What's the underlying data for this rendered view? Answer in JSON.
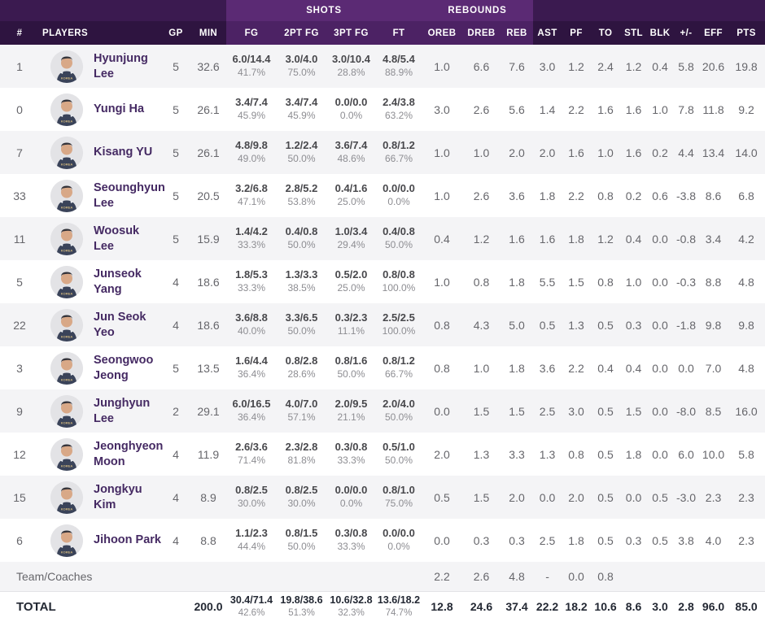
{
  "colors": {
    "header_dark": "#2e1440",
    "header_group_dark": "#3b1a50",
    "header_band": "#4c2264",
    "header_group_band": "#5b2a74",
    "player_name": "#452a63",
    "row_stripe": "#f4f4f6"
  },
  "table": {
    "group_headers": {
      "shots": "SHOTS",
      "rebounds": "REBOUNDS"
    },
    "columns": [
      "#",
      "PLAYERS",
      "GP",
      "MIN",
      "FG",
      "2PT FG",
      "3PT FG",
      "FT",
      "OREB",
      "DREB",
      "REB",
      "AST",
      "PF",
      "TO",
      "STL",
      "BLK",
      "+/-",
      "EFF",
      "PTS"
    ],
    "players": [
      {
        "number": "1",
        "name": "Hyunjung Lee",
        "gp": "5",
        "min": "32.6",
        "fg": "6.0/14.4",
        "fg_pct": "41.7%",
        "p2": "3.0/4.0",
        "p2_pct": "75.0%",
        "p3": "3.0/10.4",
        "p3_pct": "28.8%",
        "ft": "4.8/5.4",
        "ft_pct": "88.9%",
        "oreb": "1.0",
        "dreb": "6.6",
        "reb": "7.6",
        "ast": "3.0",
        "pf": "1.2",
        "to": "2.4",
        "stl": "1.2",
        "blk": "0.4",
        "pm": "5.8",
        "eff": "20.6",
        "pts": "19.8"
      },
      {
        "number": "0",
        "name": "Yungi Ha",
        "gp": "5",
        "min": "26.1",
        "fg": "3.4/7.4",
        "fg_pct": "45.9%",
        "p2": "3.4/7.4",
        "p2_pct": "45.9%",
        "p3": "0.0/0.0",
        "p3_pct": "0.0%",
        "ft": "2.4/3.8",
        "ft_pct": "63.2%",
        "oreb": "3.0",
        "dreb": "2.6",
        "reb": "5.6",
        "ast": "1.4",
        "pf": "2.2",
        "to": "1.6",
        "stl": "1.6",
        "blk": "1.0",
        "pm": "7.8",
        "eff": "11.8",
        "pts": "9.2"
      },
      {
        "number": "7",
        "name": "Kisang YU",
        "gp": "5",
        "min": "26.1",
        "fg": "4.8/9.8",
        "fg_pct": "49.0%",
        "p2": "1.2/2.4",
        "p2_pct": "50.0%",
        "p3": "3.6/7.4",
        "p3_pct": "48.6%",
        "ft": "0.8/1.2",
        "ft_pct": "66.7%",
        "oreb": "1.0",
        "dreb": "1.0",
        "reb": "2.0",
        "ast": "2.0",
        "pf": "1.6",
        "to": "1.0",
        "stl": "1.6",
        "blk": "0.2",
        "pm": "4.4",
        "eff": "13.4",
        "pts": "14.0"
      },
      {
        "number": "33",
        "name": "Seounghyun Lee",
        "gp": "5",
        "min": "20.5",
        "fg": "3.2/6.8",
        "fg_pct": "47.1%",
        "p2": "2.8/5.2",
        "p2_pct": "53.8%",
        "p3": "0.4/1.6",
        "p3_pct": "25.0%",
        "ft": "0.0/0.0",
        "ft_pct": "0.0%",
        "oreb": "1.0",
        "dreb": "2.6",
        "reb": "3.6",
        "ast": "1.8",
        "pf": "2.2",
        "to": "0.8",
        "stl": "0.2",
        "blk": "0.6",
        "pm": "-3.8",
        "eff": "8.6",
        "pts": "6.8"
      },
      {
        "number": "11",
        "name": "Woosuk Lee",
        "gp": "5",
        "min": "15.9",
        "fg": "1.4/4.2",
        "fg_pct": "33.3%",
        "p2": "0.4/0.8",
        "p2_pct": "50.0%",
        "p3": "1.0/3.4",
        "p3_pct": "29.4%",
        "ft": "0.4/0.8",
        "ft_pct": "50.0%",
        "oreb": "0.4",
        "dreb": "1.2",
        "reb": "1.6",
        "ast": "1.6",
        "pf": "1.8",
        "to": "1.2",
        "stl": "0.4",
        "blk": "0.0",
        "pm": "-0.8",
        "eff": "3.4",
        "pts": "4.2"
      },
      {
        "number": "5",
        "name": "Junseok Yang",
        "gp": "4",
        "min": "18.6",
        "fg": "1.8/5.3",
        "fg_pct": "33.3%",
        "p2": "1.3/3.3",
        "p2_pct": "38.5%",
        "p3": "0.5/2.0",
        "p3_pct": "25.0%",
        "ft": "0.8/0.8",
        "ft_pct": "100.0%",
        "oreb": "1.0",
        "dreb": "0.8",
        "reb": "1.8",
        "ast": "5.5",
        "pf": "1.5",
        "to": "0.8",
        "stl": "1.0",
        "blk": "0.0",
        "pm": "-0.3",
        "eff": "8.8",
        "pts": "4.8"
      },
      {
        "number": "22",
        "name": "Jun Seok Yeo",
        "gp": "4",
        "min": "18.6",
        "fg": "3.6/8.8",
        "fg_pct": "40.0%",
        "p2": "3.3/6.5",
        "p2_pct": "50.0%",
        "p3": "0.3/2.3",
        "p3_pct": "11.1%",
        "ft": "2.5/2.5",
        "ft_pct": "100.0%",
        "oreb": "0.8",
        "dreb": "4.3",
        "reb": "5.0",
        "ast": "0.5",
        "pf": "1.3",
        "to": "0.5",
        "stl": "0.3",
        "blk": "0.0",
        "pm": "-1.8",
        "eff": "9.8",
        "pts": "9.8"
      },
      {
        "number": "3",
        "name": "Seongwoo Jeong",
        "gp": "5",
        "min": "13.5",
        "fg": "1.6/4.4",
        "fg_pct": "36.4%",
        "p2": "0.8/2.8",
        "p2_pct": "28.6%",
        "p3": "0.8/1.6",
        "p3_pct": "50.0%",
        "ft": "0.8/1.2",
        "ft_pct": "66.7%",
        "oreb": "0.8",
        "dreb": "1.0",
        "reb": "1.8",
        "ast": "3.6",
        "pf": "2.2",
        "to": "0.4",
        "stl": "0.4",
        "blk": "0.0",
        "pm": "0.0",
        "eff": "7.0",
        "pts": "4.8"
      },
      {
        "number": "9",
        "name": "Junghyun Lee",
        "gp": "2",
        "min": "29.1",
        "fg": "6.0/16.5",
        "fg_pct": "36.4%",
        "p2": "4.0/7.0",
        "p2_pct": "57.1%",
        "p3": "2.0/9.5",
        "p3_pct": "21.1%",
        "ft": "2.0/4.0",
        "ft_pct": "50.0%",
        "oreb": "0.0",
        "dreb": "1.5",
        "reb": "1.5",
        "ast": "2.5",
        "pf": "3.0",
        "to": "0.5",
        "stl": "1.5",
        "blk": "0.0",
        "pm": "-8.0",
        "eff": "8.5",
        "pts": "16.0"
      },
      {
        "number": "12",
        "name": "Jeonghyeon Moon",
        "gp": "4",
        "min": "11.9",
        "fg": "2.6/3.6",
        "fg_pct": "71.4%",
        "p2": "2.3/2.8",
        "p2_pct": "81.8%",
        "p3": "0.3/0.8",
        "p3_pct": "33.3%",
        "ft": "0.5/1.0",
        "ft_pct": "50.0%",
        "oreb": "2.0",
        "dreb": "1.3",
        "reb": "3.3",
        "ast": "1.3",
        "pf": "0.8",
        "to": "0.5",
        "stl": "1.8",
        "blk": "0.0",
        "pm": "6.0",
        "eff": "10.0",
        "pts": "5.8"
      },
      {
        "number": "15",
        "name": "Jongkyu Kim",
        "gp": "4",
        "min": "8.9",
        "fg": "0.8/2.5",
        "fg_pct": "30.0%",
        "p2": "0.8/2.5",
        "p2_pct": "30.0%",
        "p3": "0.0/0.0",
        "p3_pct": "0.0%",
        "ft": "0.8/1.0",
        "ft_pct": "75.0%",
        "oreb": "0.5",
        "dreb": "1.5",
        "reb": "2.0",
        "ast": "0.0",
        "pf": "2.0",
        "to": "0.5",
        "stl": "0.0",
        "blk": "0.5",
        "pm": "-3.0",
        "eff": "2.3",
        "pts": "2.3"
      },
      {
        "number": "6",
        "name": "Jihoon Park",
        "gp": "4",
        "min": "8.8",
        "fg": "1.1/2.3",
        "fg_pct": "44.4%",
        "p2": "0.8/1.5",
        "p2_pct": "50.0%",
        "p3": "0.3/0.8",
        "p3_pct": "33.3%",
        "ft": "0.0/0.0",
        "ft_pct": "0.0%",
        "oreb": "0.0",
        "dreb": "0.3",
        "reb": "0.3",
        "ast": "2.5",
        "pf": "1.8",
        "to": "0.5",
        "stl": "0.3",
        "blk": "0.5",
        "pm": "3.8",
        "eff": "4.0",
        "pts": "2.3"
      }
    ],
    "team": {
      "label": "Team/Coaches",
      "oreb": "2.2",
      "dreb": "2.6",
      "reb": "4.8",
      "ast": "-",
      "pf": "0.0",
      "to": "0.8"
    },
    "total": {
      "label": "TOTAL",
      "min": "200.0",
      "fg": "30.4/71.4",
      "fg_pct": "42.6%",
      "p2": "19.8/38.6",
      "p2_pct": "51.3%",
      "p3": "10.6/32.8",
      "p3_pct": "32.3%",
      "ft": "13.6/18.2",
      "ft_pct": "74.7%",
      "oreb": "12.8",
      "dreb": "24.6",
      "reb": "37.4",
      "ast": "22.2",
      "pf": "18.2",
      "to": "10.6",
      "stl": "8.6",
      "blk": "3.0",
      "pm": "2.8",
      "eff": "96.0",
      "pts": "85.0"
    }
  }
}
